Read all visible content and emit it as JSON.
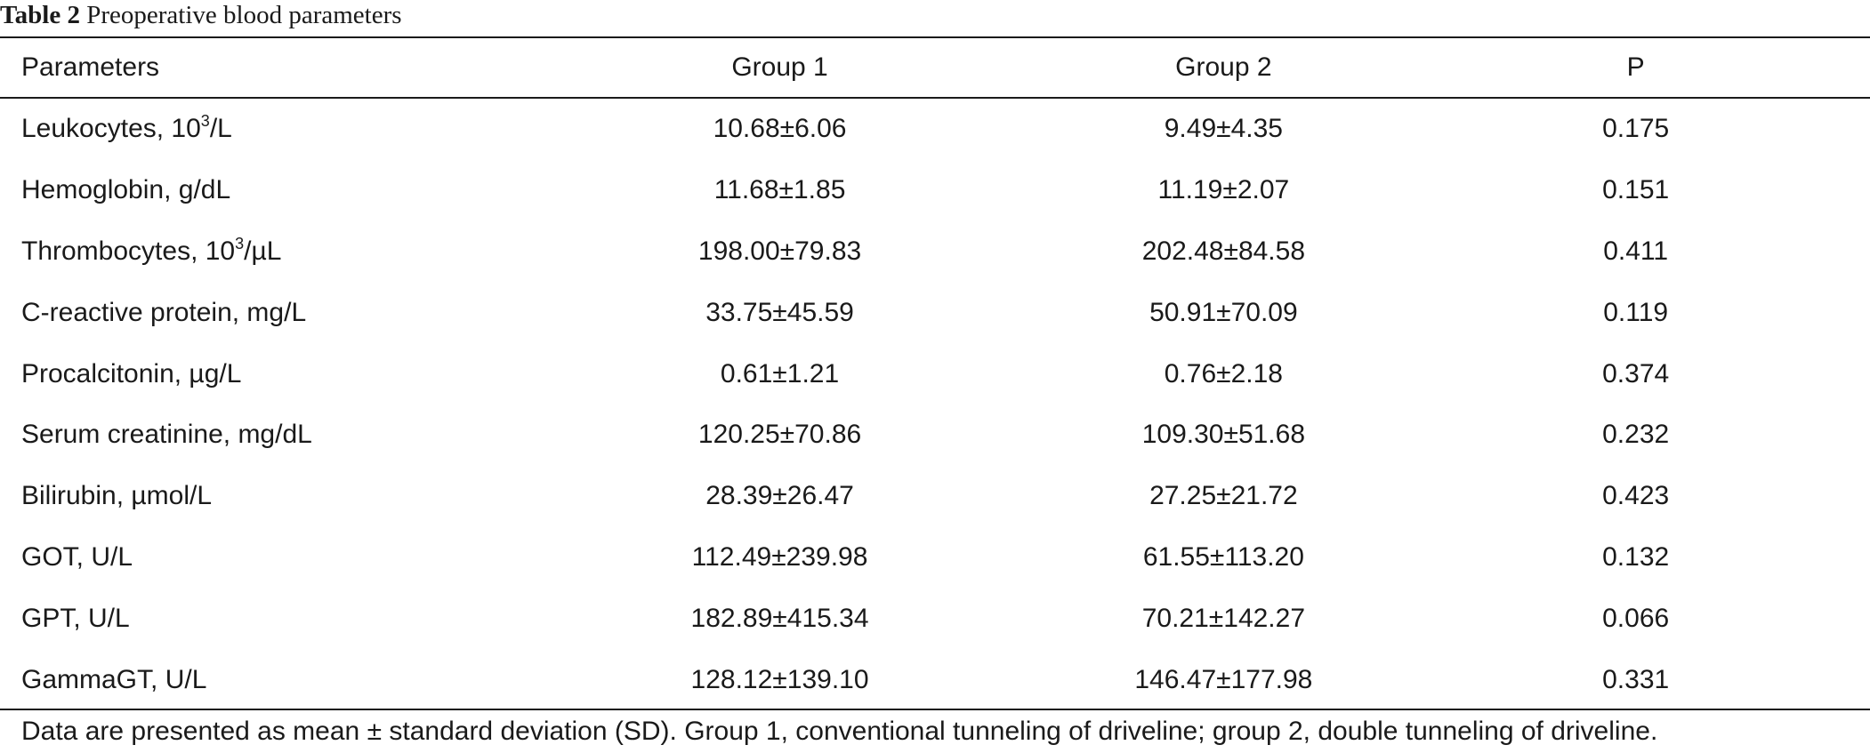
{
  "caption": {
    "label": "Table 2",
    "title": "Preoperative blood parameters"
  },
  "table": {
    "headers": [
      "Parameters",
      "Group 1",
      "Group 2",
      "P"
    ],
    "rows": [
      {
        "parameter": "Leukocytes, 10",
        "parameter_sup": "3",
        "parameter_suffix": "/L",
        "group1": "10.68±6.06",
        "group2": "9.49±4.35",
        "p": "0.175"
      },
      {
        "parameter": "Hemoglobin, g/dL",
        "group1": "11.68±1.85",
        "group2": "11.19±2.07",
        "p": "0.151"
      },
      {
        "parameter": "Thrombocytes, 10",
        "parameter_sup": "3",
        "parameter_suffix": "/µL",
        "group1": "198.00±79.83",
        "group2": "202.48±84.58",
        "p": "0.411"
      },
      {
        "parameter": "C-reactive protein, mg/L",
        "group1": "33.75±45.59",
        "group2": "50.91±70.09",
        "p": "0.119"
      },
      {
        "parameter": "Procalcitonin, µg/L",
        "group1": "0.61±1.21",
        "group2": "0.76±2.18",
        "p": "0.374"
      },
      {
        "parameter": "Serum creatinine, mg/dL",
        "group1": "120.25±70.86",
        "group2": "109.30±51.68",
        "p": "0.232"
      },
      {
        "parameter": "Bilirubin, µmol/L",
        "group1": "28.39±26.47",
        "group2": "27.25±21.72",
        "p": "0.423"
      },
      {
        "parameter": "GOT, U/L",
        "group1": "112.49±239.98",
        "group2": "61.55±113.20",
        "p": "0.132"
      },
      {
        "parameter": "GPT, U/L",
        "group1": "182.89±415.34",
        "group2": "70.21±142.27",
        "p": "0.066"
      },
      {
        "parameter": "GammaGT, U/L",
        "group1": "128.12±139.10",
        "group2": "146.47±177.98",
        "p": "0.331"
      }
    ]
  },
  "footnote": "Data are presented as mean ± standard deviation (SD). Group 1, conventional tunneling of driveline; group 2, double tunneling of driveline."
}
